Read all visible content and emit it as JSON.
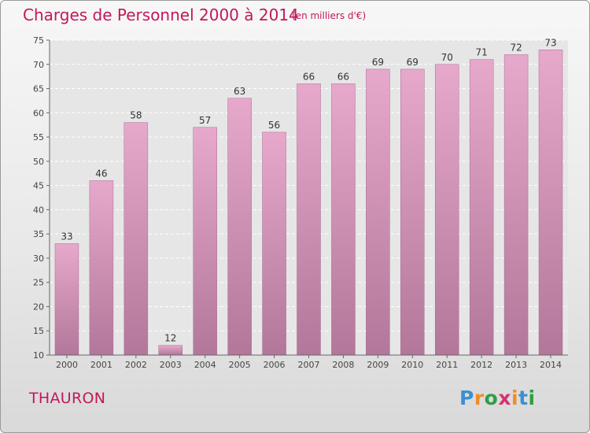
{
  "chart_data": {
    "type": "bar",
    "title": "Charges de Personnel 2000 à 2014",
    "subtitle": "(en milliers d'€)",
    "categories": [
      "2000",
      "2001",
      "2002",
      "2003",
      "2004",
      "2005",
      "2006",
      "2007",
      "2008",
      "2009",
      "2010",
      "2011",
      "2012",
      "2013",
      "2014"
    ],
    "values": [
      33,
      46,
      58,
      12,
      57,
      63,
      56,
      66,
      66,
      69,
      69,
      70,
      71,
      72,
      73
    ],
    "ylim": [
      10,
      75
    ],
    "yticks": [
      10,
      15,
      20,
      25,
      30,
      35,
      40,
      45,
      50,
      55,
      60,
      65,
      70,
      75
    ],
    "grid": true,
    "bar_color": "#d98bb5"
  },
  "commune": "THAURON",
  "logo": {
    "text": "Proxiti",
    "letters": [
      "P",
      "r",
      "o",
      "x",
      "i",
      "t",
      "i"
    ],
    "colors": [
      "#3d8fd1",
      "#f28c28",
      "#2f9e44",
      "#d6336c",
      "#f28c28",
      "#3d8fd1",
      "#2f9e44"
    ]
  }
}
